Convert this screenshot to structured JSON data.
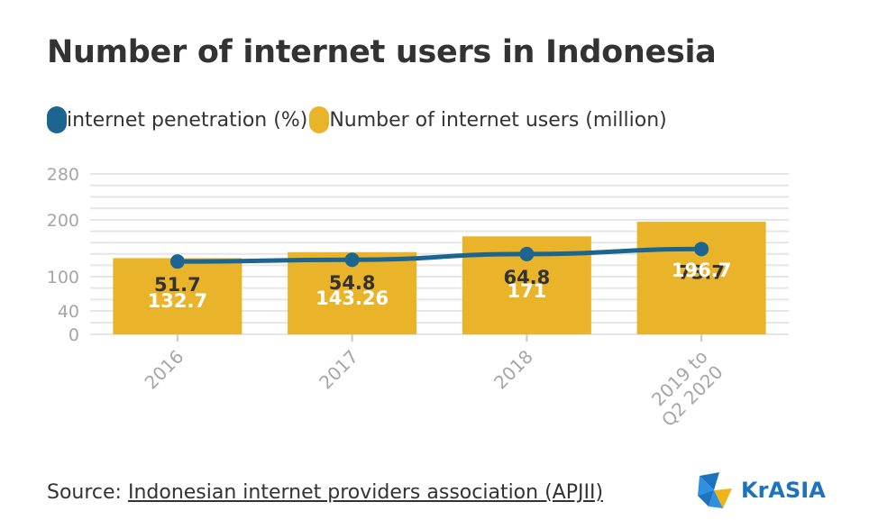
{
  "title": "Number of internet users in Indonesia",
  "legend": {
    "line_label": "internet penetration (%)",
    "bar_label": "Number of internet users (million)"
  },
  "colors": {
    "bar": "#e9b42a",
    "line": "#1c6591",
    "grid": "#e6e6e6",
    "axis_text": "#a6a6a6",
    "title": "#333333",
    "logo": "#1e73be"
  },
  "chart_data": {
    "type": "bar",
    "categories": [
      "2016",
      "2017",
      "2018",
      "2019 to Q2 2020"
    ],
    "series": [
      {
        "name": "Number of internet users (million)",
        "type": "bar",
        "values": [
          132.7,
          143.26,
          171,
          196.7
        ]
      },
      {
        "name": "internet penetration (%)",
        "type": "line",
        "values": [
          51.7,
          54.8,
          64.8,
          73.7
        ]
      }
    ],
    "y_ticks": [
      0,
      40,
      100,
      200,
      280
    ],
    "ylim": [
      0,
      280
    ],
    "grid": true,
    "legend_position": "top-left"
  },
  "source": {
    "prefix": "Source: ",
    "link": "Indonesian internet providers association (APJII)"
  },
  "logo": {
    "text": "KrASIA",
    "icon": "krasia-logo-icon"
  }
}
